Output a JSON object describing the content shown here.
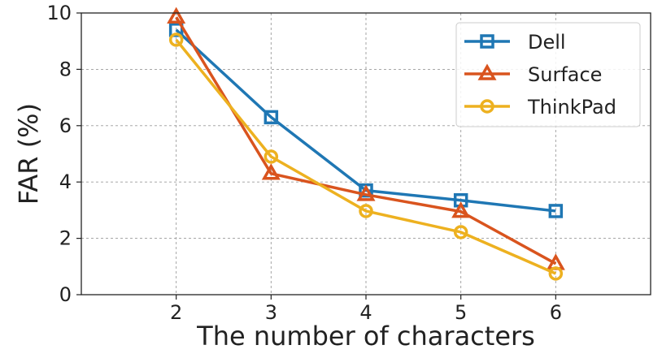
{
  "chart_data": {
    "type": "line",
    "xlabel": "The number of characters",
    "ylabel": "FAR (%)",
    "x": [
      2,
      3,
      4,
      5,
      6
    ],
    "xlim": [
      1,
      7
    ],
    "ylim": [
      0,
      10
    ],
    "xticks": [
      "2",
      "3",
      "4",
      "5",
      "6"
    ],
    "yticks": [
      "0",
      "2",
      "4",
      "6",
      "8",
      "10"
    ],
    "grid": true,
    "legend_position": "top-right",
    "series": [
      {
        "name": "Dell",
        "values": [
          9.4,
          6.3,
          3.7,
          3.35,
          2.97
        ],
        "color": "#1f77b4",
        "marker": "square"
      },
      {
        "name": "Surface",
        "values": [
          9.85,
          4.3,
          3.55,
          2.95,
          1.1
        ],
        "color": "#d9541e",
        "marker": "triangle"
      },
      {
        "name": "ThinkPad",
        "values": [
          9.05,
          4.9,
          2.97,
          2.22,
          0.75
        ],
        "color": "#edb120",
        "marker": "circle"
      }
    ]
  }
}
